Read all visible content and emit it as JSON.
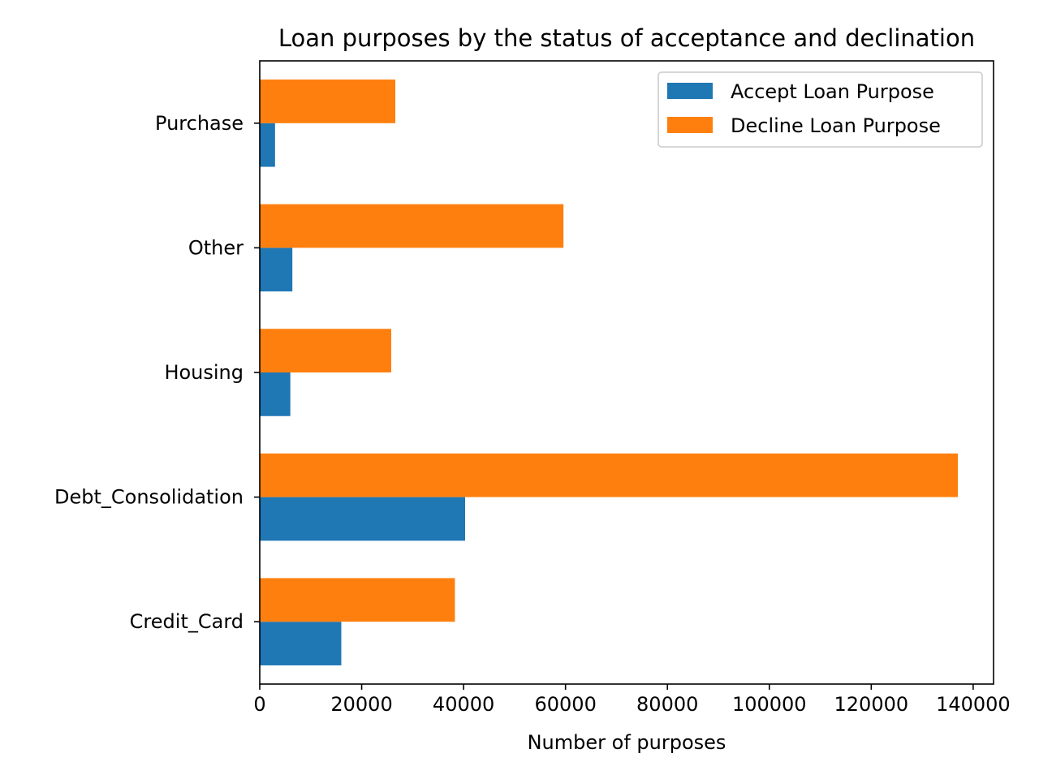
{
  "chart_data": {
    "type": "bar",
    "orientation": "horizontal",
    "title": "Loan purposes by the status of acceptance and declination",
    "xlabel": "Number of purposes",
    "ylabel": "",
    "categories": [
      "Credit_Card",
      "Debt_Consolidation",
      "Housing",
      "Other",
      "Purchase"
    ],
    "series": [
      {
        "name": "Accept Loan Purpose",
        "color": "#1f77b4",
        "values": [
          16000,
          40300,
          6000,
          6400,
          3000
        ]
      },
      {
        "name": "Decline Loan Purpose",
        "color": "#ff7f0e",
        "values": [
          38300,
          137000,
          25800,
          59600,
          26600
        ]
      }
    ],
    "xlim": [
      0,
      144000
    ],
    "xticks": [
      0,
      20000,
      40000,
      60000,
      80000,
      100000,
      120000,
      140000
    ],
    "xtick_labels": [
      "0",
      "20000",
      "40000",
      "60000",
      "80000",
      "100000",
      "120000",
      "140000"
    ],
    "grid": false,
    "legend_position": "top-right"
  }
}
